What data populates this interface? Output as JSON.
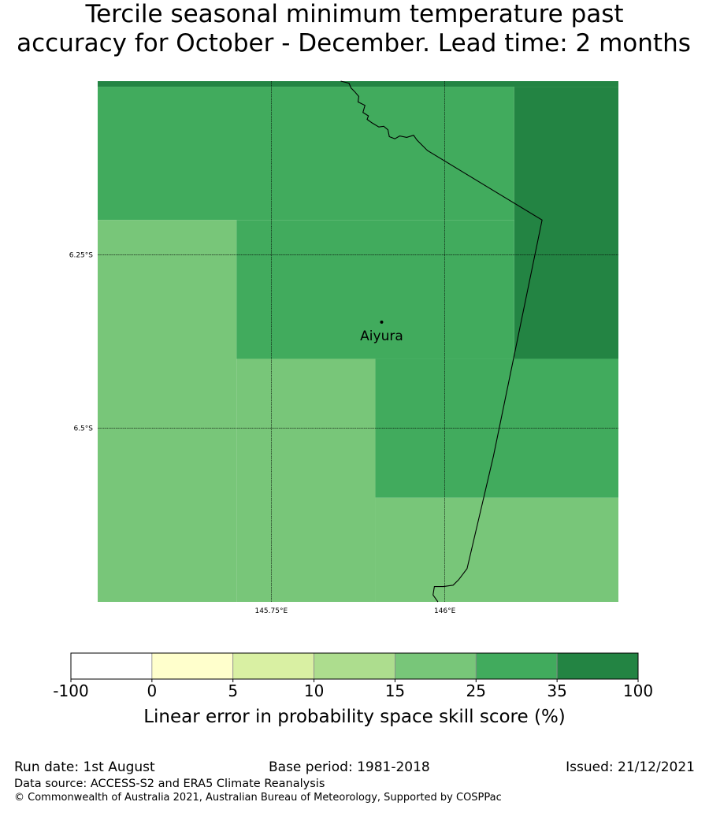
{
  "title": {
    "line1": "Tercile seasonal minimum temperature past",
    "line2": "accuracy for October - December. Lead time: 2 months"
  },
  "map": {
    "lon_range": [
      145.5,
      146.25
    ],
    "lat_range": [
      -6.75,
      -6.0
    ],
    "gridlines": {
      "lon": [
        {
          "value": 145.75,
          "label": "145.75°E"
        },
        {
          "value": 146.0,
          "label": "146°E"
        }
      ],
      "lat": [
        {
          "value": -6.25,
          "label": "6.25°S"
        },
        {
          "value": -6.5,
          "label": "6.5°S"
        }
      ]
    },
    "cells": [
      {
        "lon": [
          145.5,
          146.25
        ],
        "lat": [
          -6.0,
          -6.008
        ],
        "color": "#238443"
      },
      {
        "lon": [
          145.5,
          146.1
        ],
        "lat": [
          -6.008,
          -6.2
        ],
        "color": "#41ab5d"
      },
      {
        "lon": [
          146.1,
          146.25
        ],
        "lat": [
          -6.008,
          -6.4
        ],
        "color": "#238443"
      },
      {
        "lon": [
          145.5,
          145.7
        ],
        "lat": [
          -6.2,
          -6.75
        ],
        "color": "#78c679"
      },
      {
        "lon": [
          145.7,
          146.1
        ],
        "lat": [
          -6.2,
          -6.4
        ],
        "color": "#41ab5d"
      },
      {
        "lon": [
          145.7,
          145.9
        ],
        "lat": [
          -6.4,
          -6.75
        ],
        "color": "#78c679"
      },
      {
        "lon": [
          145.9,
          146.25
        ],
        "lat": [
          -6.4,
          -6.6
        ],
        "color": "#41ab5d"
      },
      {
        "lon": [
          145.9,
          146.25
        ],
        "lat": [
          -6.6,
          -6.75
        ],
        "color": "#78c679"
      }
    ],
    "border": [
      [
        145.85,
        -6.0
      ],
      [
        145.862,
        -6.003
      ],
      [
        145.865,
        -6.01
      ],
      [
        145.87,
        -6.015
      ],
      [
        145.876,
        -6.022
      ],
      [
        145.875,
        -6.03
      ],
      [
        145.885,
        -6.035
      ],
      [
        145.882,
        -6.045
      ],
      [
        145.89,
        -6.05
      ],
      [
        145.888,
        -6.055
      ],
      [
        145.895,
        -6.06
      ],
      [
        145.905,
        -6.066
      ],
      [
        145.912,
        -6.065
      ],
      [
        145.918,
        -6.07
      ],
      [
        145.92,
        -6.08
      ],
      [
        145.928,
        -6.083
      ],
      [
        145.935,
        -6.079
      ],
      [
        145.945,
        -6.081
      ],
      [
        145.955,
        -6.078
      ],
      [
        145.96,
        -6.085
      ],
      [
        145.967,
        -6.092
      ],
      [
        145.975,
        -6.1
      ],
      [
        146.14,
        -6.2
      ],
      [
        146.07,
        -6.54
      ],
      [
        146.032,
        -6.702
      ],
      [
        146.02,
        -6.718
      ],
      [
        146.012,
        -6.726
      ],
      [
        145.998,
        -6.728
      ],
      [
        145.985,
        -6.728
      ],
      [
        145.983,
        -6.74
      ],
      [
        145.99,
        -6.75
      ]
    ],
    "places": [
      {
        "name": "Aiyura",
        "lon": 145.909,
        "lat": -6.347
      }
    ]
  },
  "colorbar": {
    "ticks": [
      "-100",
      "0",
      "5",
      "10",
      "15",
      "25",
      "35",
      "100"
    ],
    "colors": [
      "#ffffff",
      "#ffffcc",
      "#d9f0a3",
      "#addd8e",
      "#78c679",
      "#41ab5d",
      "#238443"
    ],
    "label": "Linear error in probability space skill score (%)"
  },
  "footer": {
    "run_date": "Run date: 1st August",
    "base_period": "Base period: 1981-2018",
    "issued": "Issued: 21/12/2021",
    "data_source": "Data source: ACCESS-S2 and ERA5 Climate Reanalysis",
    "copyright": "© Commonwealth of Australia 2021, Australian Bureau of Meteorology, Supported by COSPPac"
  }
}
